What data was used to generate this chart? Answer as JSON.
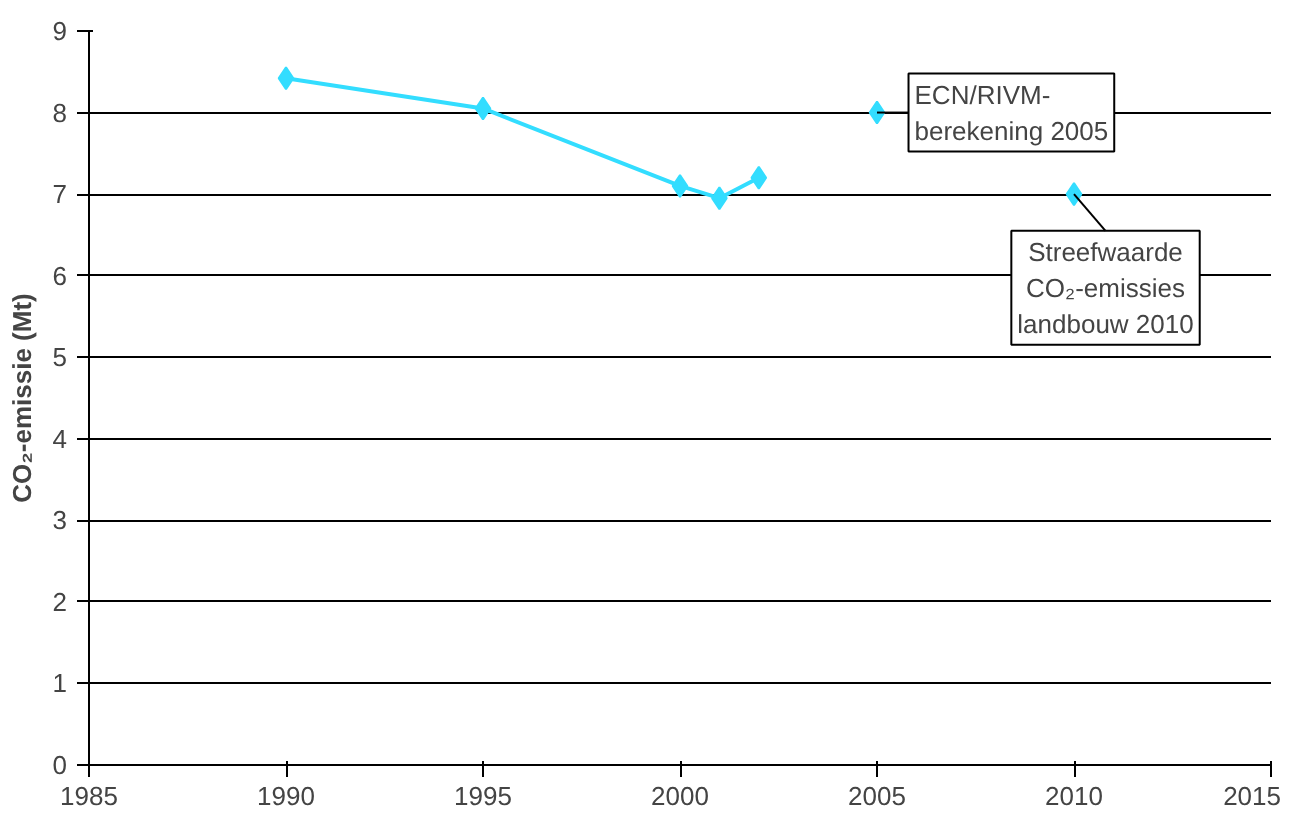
{
  "chart_data": {
    "type": "line",
    "ylabel": "CO₂-emissie (Mt)",
    "series": [
      {
        "color": "#33ddff",
        "x": [
          1990,
          1995,
          2000,
          2001,
          2002
        ],
        "values": [
          8.42,
          8.05,
          7.1,
          6.95,
          7.2
        ]
      },
      {
        "type": "scatter",
        "color": "#33ddff",
        "x": [
          2005,
          2010
        ],
        "values": [
          8.0,
          7.0
        ]
      }
    ],
    "xlim": [
      1985,
      2015
    ],
    "xticks": [
      1985,
      1990,
      1995,
      2000,
      2005,
      2010,
      2015
    ],
    "ylim": [
      0,
      9
    ],
    "yticks": [
      0,
      1,
      2,
      3,
      4,
      5,
      6,
      7,
      8,
      9
    ],
    "grid": "y",
    "marker": "diamond",
    "line_style": "solid",
    "annotations": [
      {
        "text": "ECN/RIVM-\nberekening 2005",
        "x": 2005,
        "y": 8.0
      },
      {
        "text": "Streefwaarde\nCO₂-emissies\nlandbouw 2010",
        "x": 2010,
        "y": 7.0
      }
    ]
  }
}
